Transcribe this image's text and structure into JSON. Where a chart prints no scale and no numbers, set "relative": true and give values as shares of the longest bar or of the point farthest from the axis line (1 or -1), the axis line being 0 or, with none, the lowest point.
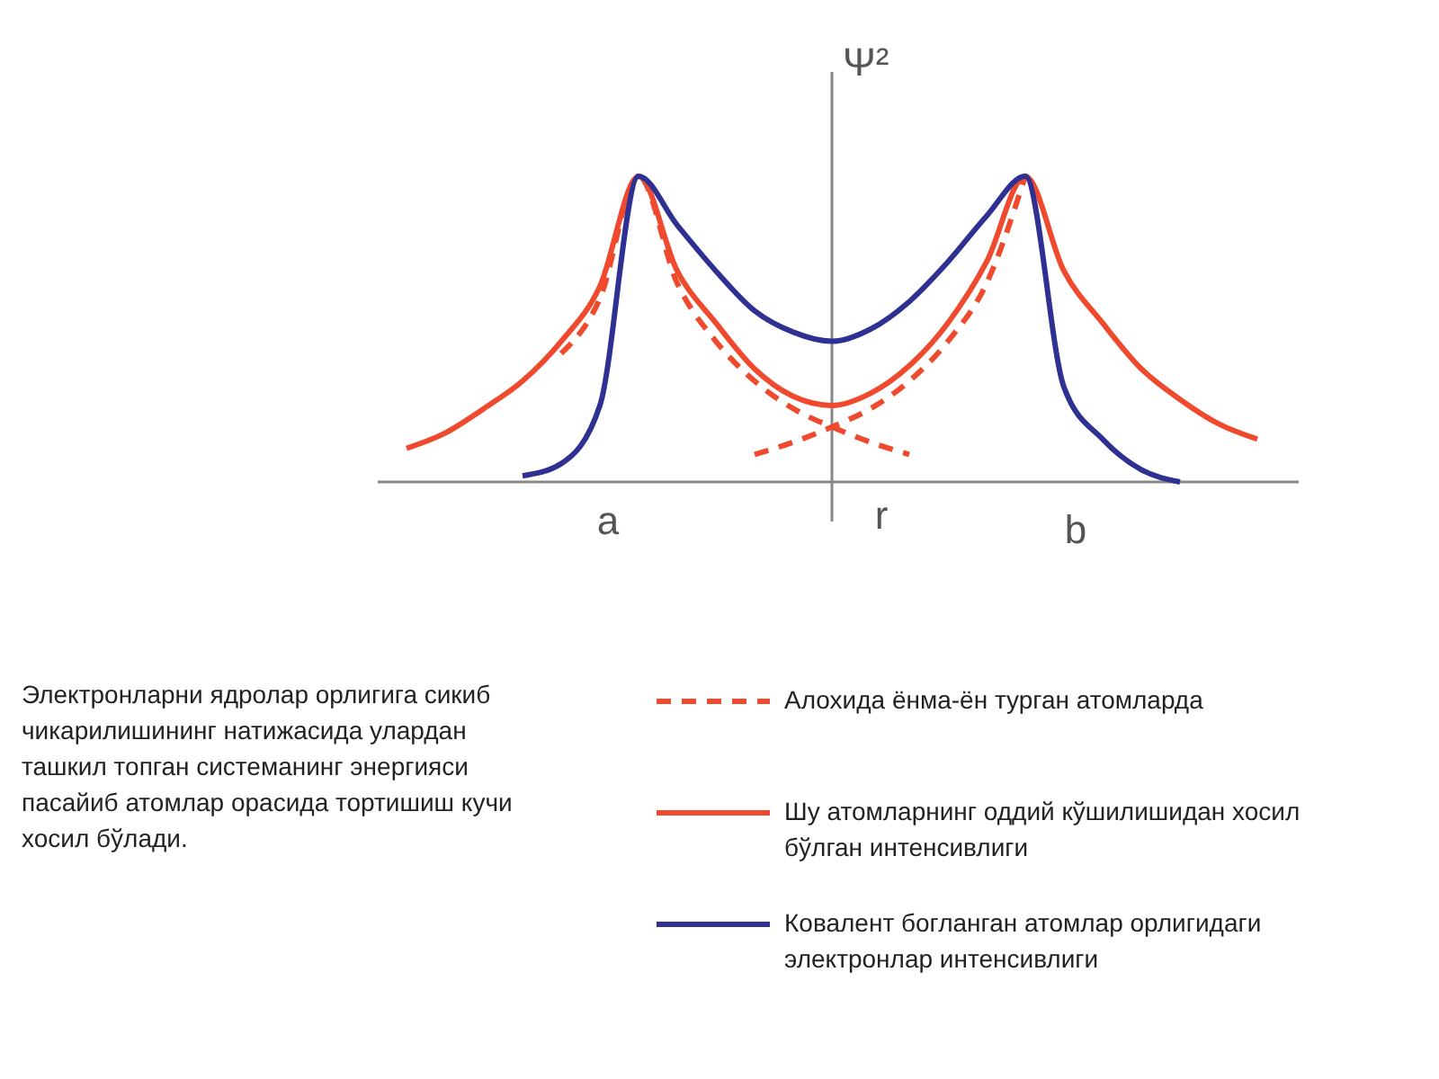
{
  "chart_data": {
    "type": "line",
    "relative": true,
    "xlabel": "r",
    "ylabel": "Ψ²",
    "legend": "bottom",
    "categories": [
      null,
      null,
      null,
      null,
      null,
      null,
      null,
      null,
      null,
      null,
      null,
      null,
      null,
      null,
      null,
      null,
      null,
      null,
      null,
      null,
      null,
      null,
      null,
      null,
      null
    ],
    "series": [
      {
        "name": "Алохида ёнма-ён турган атомларда",
        "color": "#f04a2e",
        "line_style": "dashed",
        "values": [
          null,
          null,
          null,
          null,
          null,
          0.42,
          0.6,
          1.0,
          0.65,
          0.46,
          0.33,
          0.24,
          0.18,
          0.13,
          0.09,
          null,
          null,
          null,
          null,
          null,
          null,
          null,
          null,
          null,
          null
        ]
      },
      {
        "color": "#f04a2e",
        "line_style": "dashed",
        "values": [
          null,
          null,
          null,
          null,
          null,
          null,
          null,
          null,
          null,
          null,
          0.09,
          0.13,
          0.18,
          0.24,
          0.33,
          0.46,
          0.65,
          1.0,
          null,
          null,
          null,
          null,
          null,
          null,
          null
        ]
      },
      {
        "name": "Шу атомларнинг оддий кўшилишидан хосил бўлган интенсивлиги",
        "color": "#f04a2e",
        "line_style": "solid",
        "values": [
          null,
          0.11,
          0.16,
          0.24,
          0.33,
          0.46,
          0.64,
          1.0,
          0.69,
          0.52,
          0.37,
          0.28,
          0.25,
          0.29,
          0.38,
          0.52,
          0.72,
          1.0,
          0.69,
          0.52,
          0.37,
          0.27,
          0.19,
          0.14,
          null
        ]
      },
      {
        "name": "Ковалент богланган атомлар орлигидаги электронлар интенсивлиги",
        "color": "#2e3192",
        "line_style": "solid",
        "values": [
          null,
          null,
          null,
          null,
          0.02,
          0.06,
          0.25,
          1.0,
          0.84,
          0.69,
          0.56,
          0.49,
          0.46,
          0.5,
          0.59,
          0.72,
          0.87,
          1.0,
          0.31,
          0.14,
          0.04,
          0.0,
          null,
          null,
          null
        ]
      }
    ],
    "annotations": [
      "a",
      "b",
      "Электронларни ядролар орлигига сикиб чикарилишининг натижасида улардан ташкил топган системанинг энергияси пасайиб атомлар орасида тортишиш кучи хосил бўлади."
    ]
  }
}
